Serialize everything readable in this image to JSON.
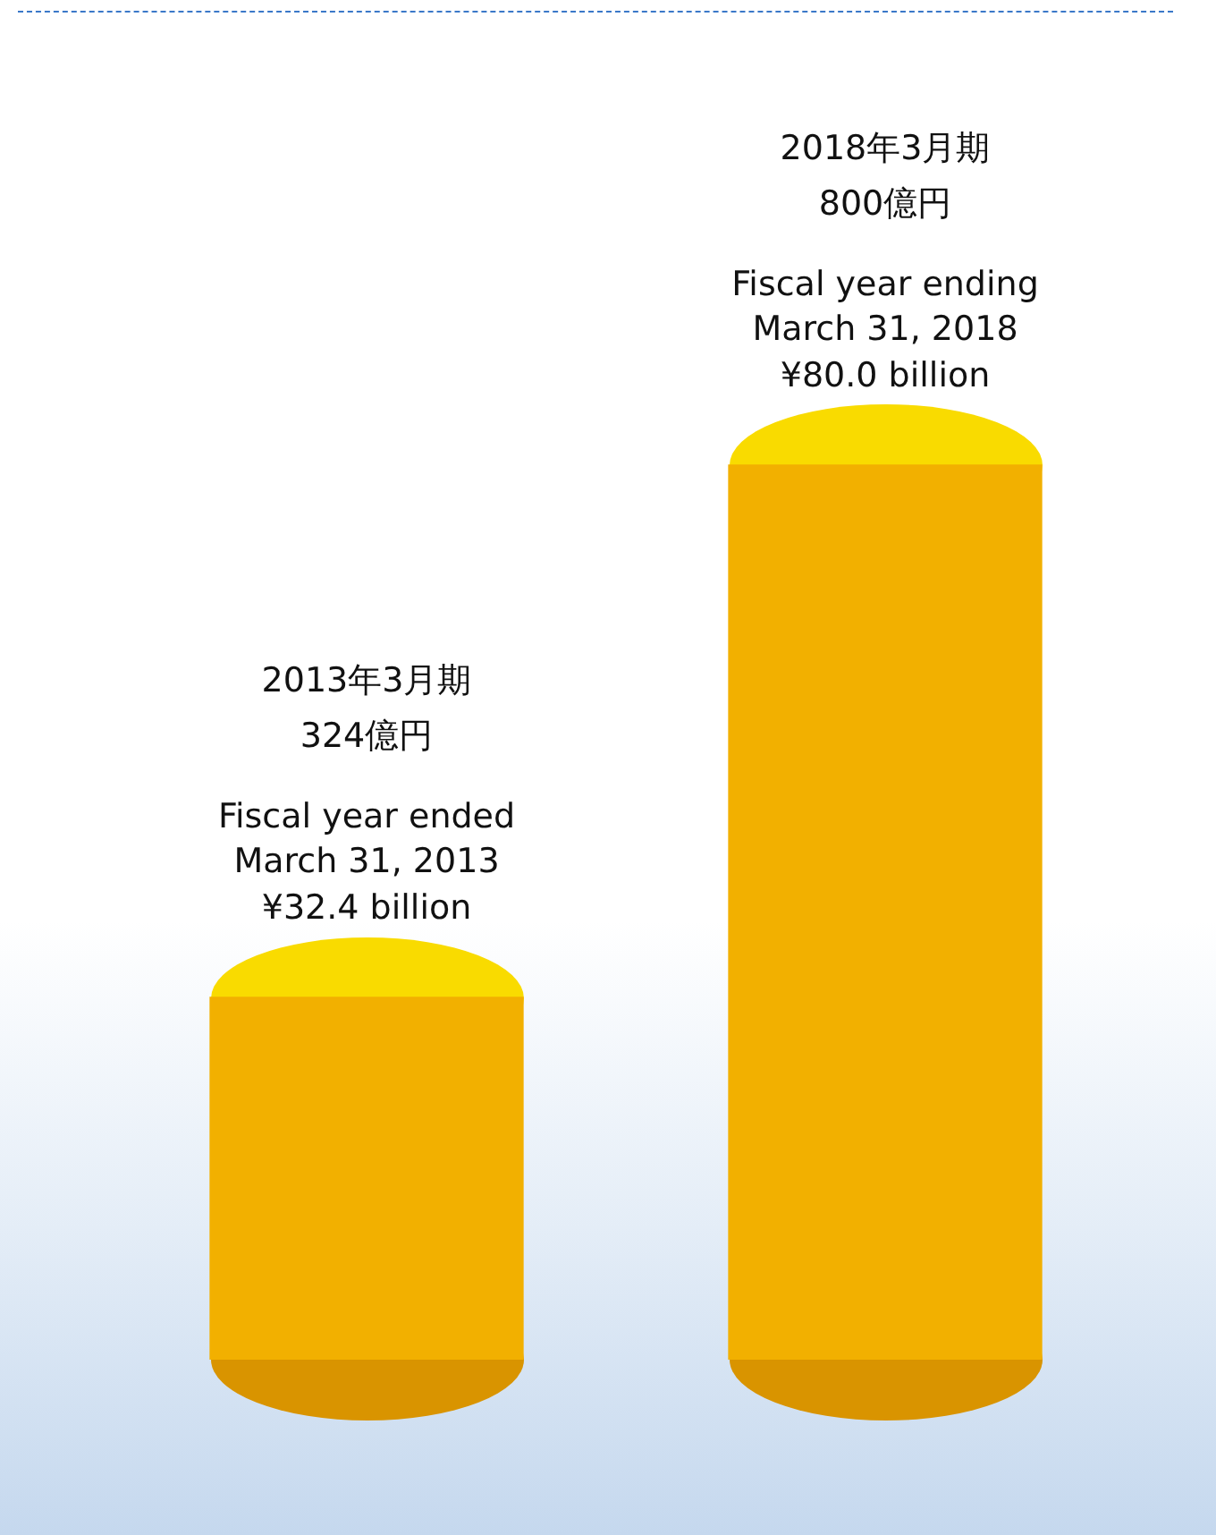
{
  "chart_data": {
    "type": "bar",
    "categories": [
      null,
      null
    ],
    "values": [
      32.4,
      80.0
    ],
    "color": "#f2b000",
    "value_labels": [
      "¥32.4 billion",
      "¥80.0 billion"
    ],
    "annotations": [
      "2013年3月期",
      "324億円",
      "Fiscal year ended",
      "March 31, 2013",
      "2018年3月期",
      "800億円",
      "Fiscal year ending",
      "March 31, 2018"
    ],
    "legend": false,
    "tick_labels": false
  }
}
